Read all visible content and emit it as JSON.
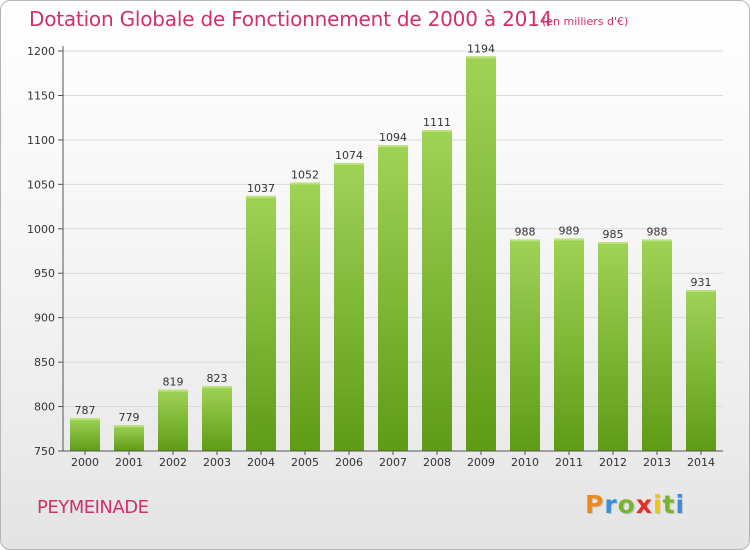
{
  "header": {
    "title": "Dotation Globale de Fonctionnement de 2000 à 2014",
    "unit": "(en milliers d'€)"
  },
  "commune": "PEYMEINADE",
  "logo": {
    "letters": [
      "P",
      "r",
      "o",
      "x",
      "i",
      "t",
      "i"
    ],
    "colors": [
      "#f08a1c",
      "#3a8fd8",
      "#7ab42e",
      "#e0302a",
      "#f0c21a",
      "#7ab42e",
      "#3a8fd8"
    ]
  },
  "colors": {
    "bar_top": "#9fd356",
    "bar_bottom": "#5f9b17",
    "title": "#d0306c",
    "grid": "#d9d9d9"
  },
  "chart_data": {
    "type": "bar",
    "title": "Dotation Globale de Fonctionnement de 2000 à 2014",
    "subtitle": "(en milliers d'€)",
    "xlabel": "",
    "ylabel": "",
    "categories": [
      "2000",
      "2001",
      "2002",
      "2003",
      "2004",
      "2005",
      "2006",
      "2007",
      "2008",
      "2009",
      "2010",
      "2011",
      "2012",
      "2013",
      "2014"
    ],
    "values": [
      787,
      779,
      819,
      823,
      1037,
      1052,
      1074,
      1094,
      1111,
      1194,
      988,
      989,
      985,
      988,
      931
    ],
    "ylim": [
      750,
      1200
    ],
    "yticks": [
      750,
      800,
      850,
      900,
      950,
      1000,
      1050,
      1100,
      1150,
      1200
    ],
    "grid": true,
    "legend": "none"
  }
}
